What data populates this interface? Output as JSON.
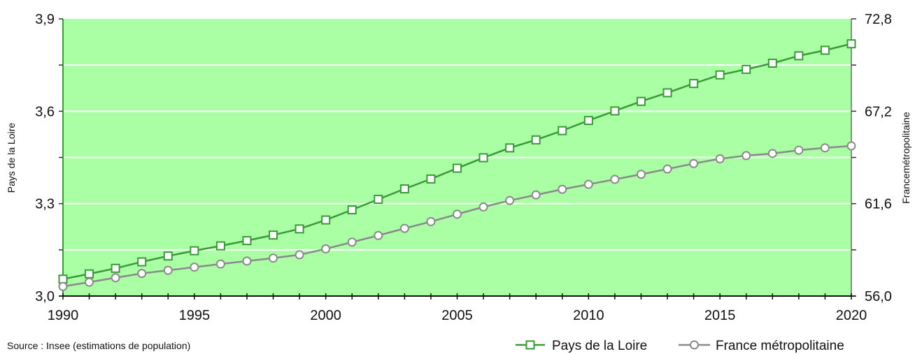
{
  "chart_data": {
    "type": "line",
    "x": [
      1990,
      1991,
      1992,
      1993,
      1994,
      1995,
      1996,
      1997,
      1998,
      1999,
      2000,
      2001,
      2002,
      2003,
      2004,
      2005,
      2006,
      2007,
      2008,
      2009,
      2010,
      2011,
      2012,
      2013,
      2014,
      2015,
      2016,
      2017,
      2018,
      2019,
      2020
    ],
    "x_ticks": [
      "1990",
      "1995",
      "2000",
      "2005",
      "2010",
      "2015",
      "2020"
    ],
    "y_left": {
      "label": "Pays de la Loire",
      "range": [
        3.0,
        3.9
      ],
      "ticks": [
        "3,0",
        "3,3",
        "3,6",
        "3,9"
      ]
    },
    "y_right": {
      "label": "Francemétropolitaine",
      "range": [
        56.0,
        72.8
      ],
      "ticks": [
        "56,0",
        "61,6",
        "67,2",
        "72,8"
      ]
    },
    "series": [
      {
        "name": "Pays de la Loire",
        "axis": "left",
        "marker": "square",
        "color": "#3a9a3a",
        "values": [
          3.055,
          3.072,
          3.09,
          3.111,
          3.13,
          3.147,
          3.163,
          3.18,
          3.198,
          3.218,
          3.247,
          3.28,
          3.314,
          3.348,
          3.38,
          3.415,
          3.449,
          3.481,
          3.507,
          3.537,
          3.57,
          3.601,
          3.632,
          3.66,
          3.69,
          3.718,
          3.736,
          3.756,
          3.78,
          3.798,
          3.819
        ]
      },
      {
        "name": "France métropolitaine",
        "axis": "right",
        "marker": "circle",
        "color": "#8a8a8a",
        "values": [
          56.58,
          56.84,
          57.11,
          57.37,
          57.56,
          57.75,
          57.94,
          58.12,
          58.3,
          58.5,
          58.86,
          59.27,
          59.67,
          60.1,
          60.51,
          60.96,
          61.4,
          61.79,
          62.13,
          62.47,
          62.77,
          63.07,
          63.38,
          63.7,
          64.03,
          64.32,
          64.51,
          64.64,
          64.84,
          64.98,
          65.1
        ]
      }
    ],
    "grid": true,
    "background_color": "#aaffa5",
    "legend_position": "bottom-right"
  },
  "source_text": "Source : Insee (estimations de population)",
  "legend": {
    "items": [
      {
        "label": "Pays de la Loire",
        "icon": "square-marker-icon",
        "color": "#3a9a3a"
      },
      {
        "label": "France métropolitaine",
        "icon": "circle-marker-icon",
        "color": "#8a8a8a"
      }
    ]
  }
}
